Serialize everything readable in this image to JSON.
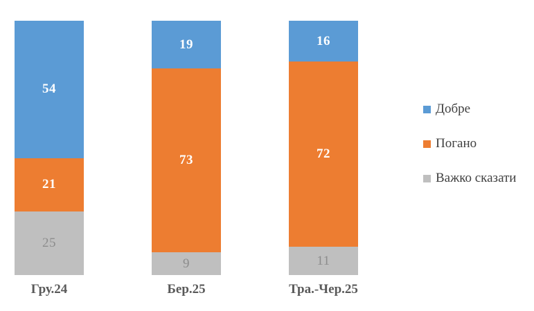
{
  "chart_data": {
    "type": "bar",
    "variant": "stacked-100-percent-column",
    "title": "",
    "xlabel": "",
    "ylabel": "",
    "grid": false,
    "legend_position": "right",
    "background": "#FFFFFF",
    "categories": [
      "Гру.24",
      "Бер.25",
      "Тра.-Чер.25"
    ],
    "series": [
      {
        "name": "Добре",
        "color": "#5B9BD5",
        "label_color": "#FFFFFF",
        "values": [
          54,
          19,
          16
        ]
      },
      {
        "name": "Погано",
        "color": "#ED7D31",
        "label_color": "#FFFFFF",
        "values": [
          21,
          73,
          72
        ]
      },
      {
        "name": "Важко сказати",
        "color": "#BFBFBF",
        "label_color": "#8C8C8C",
        "values": [
          25,
          9,
          11
        ]
      }
    ]
  },
  "text_colors": {
    "axis_label": "#595959",
    "legend_label": "#404040"
  }
}
